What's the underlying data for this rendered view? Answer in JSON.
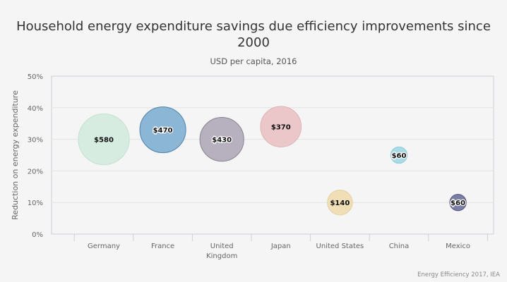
{
  "chart_data": {
    "type": "bubble",
    "title": "Household energy expenditure savings due efficiency improvements since 2000",
    "subtitle": "USD per capita, 2016",
    "ylabel": "Reduction on energy expenditure",
    "xlabel": "",
    "ylim": [
      0,
      50
    ],
    "yticks": [
      "0%",
      "10%",
      "20%",
      "30%",
      "40%",
      "50%"
    ],
    "grid": true,
    "categories": [
      "Germany",
      "France",
      "United Kingdom",
      "Japan",
      "United States",
      "China",
      "Mexico"
    ],
    "points": [
      {
        "category": "Germany",
        "y": 30,
        "size": 580,
        "label": "$580",
        "color": "#d7ece1",
        "stroke": "#c5e0d2",
        "label_halo": false
      },
      {
        "category": "France",
        "y": 33,
        "size": 470,
        "label": "$470",
        "color": "#8cb6d6",
        "stroke": "#4d83ad",
        "label_halo": true
      },
      {
        "category": "United Kingdom",
        "y": 30,
        "size": 430,
        "label": "$430",
        "color": "#b7b0be",
        "stroke": "#8a8590",
        "label_halo": true
      },
      {
        "category": "Japan",
        "y": 34,
        "size": 370,
        "label": "$370",
        "color": "#ecc7ca",
        "stroke": "#dfb3b7",
        "label_halo": false
      },
      {
        "category": "United States",
        "y": 10,
        "size": 140,
        "label": "$140",
        "color": "#f0dfb6",
        "stroke": "#e6d2a0",
        "label_halo": false
      },
      {
        "category": "China",
        "y": 25,
        "size": 60,
        "label": "$60",
        "color": "#a9dbe7",
        "stroke": "#8ccbd9",
        "label_halo": true
      },
      {
        "category": "Mexico",
        "y": 10,
        "size": 60,
        "label": "$60",
        "color": "#7b7fa6",
        "stroke": "#4f5380",
        "label_halo": true
      }
    ],
    "source": "Energy Efficiency 2017, IEA"
  }
}
